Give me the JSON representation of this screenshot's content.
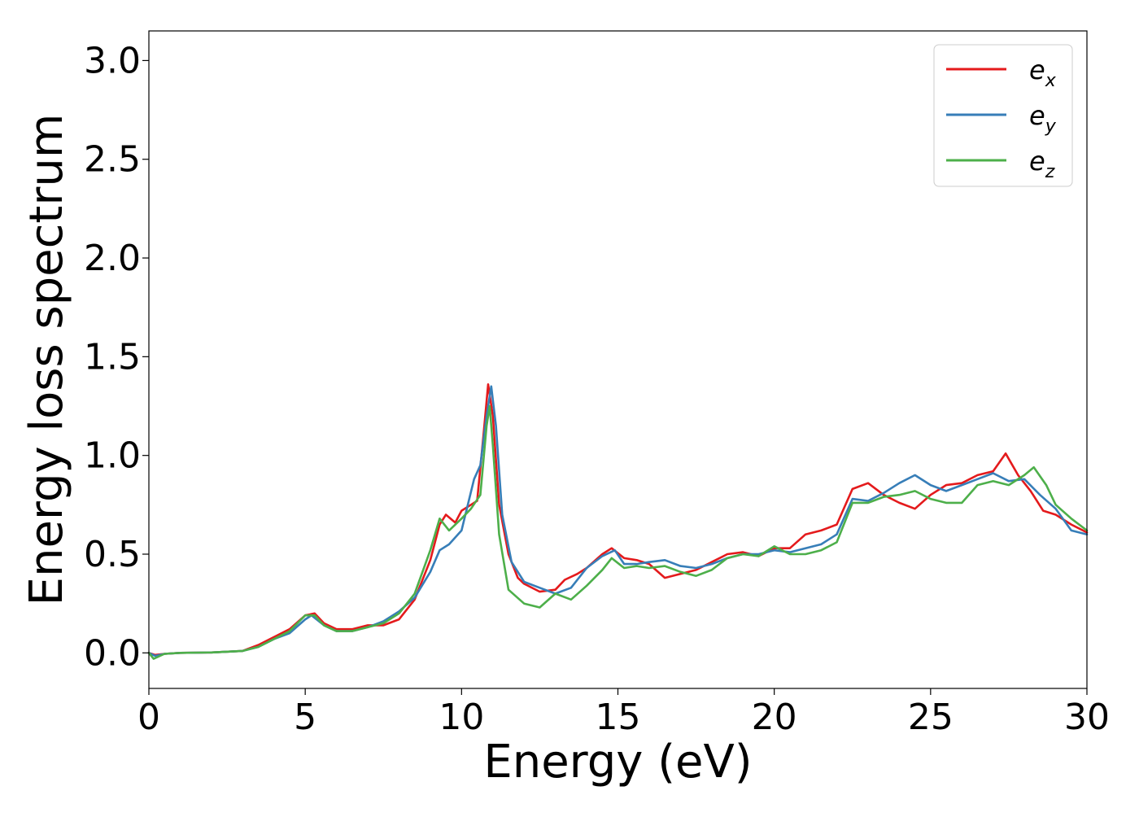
{
  "chart_data": {
    "type": "line",
    "title": "",
    "xlabel": "Energy (eV)",
    "ylabel": "Energy loss spectrum",
    "xlim": [
      0,
      30
    ],
    "ylim": [
      -0.18,
      3.15
    ],
    "xticks": [
      0,
      5,
      10,
      15,
      20,
      25,
      30
    ],
    "xtick_labels": [
      "0",
      "5",
      "10",
      "15",
      "20",
      "25",
      "30"
    ],
    "yticks": [
      0.0,
      0.5,
      1.0,
      1.5,
      2.0,
      2.5,
      3.0
    ],
    "ytick_labels": [
      "0.0",
      "0.5",
      "1.0",
      "1.5",
      "2.0",
      "2.5",
      "3.0"
    ],
    "grid": false,
    "legend_position": "top-right",
    "series": [
      {
        "name": "e_x",
        "legend_base": "e",
        "legend_sub": "x",
        "color": "#e41a1c",
        "points": [
          [
            0,
            0
          ],
          [
            0.2,
            -0.01
          ],
          [
            0.5,
            -0.005
          ],
          [
            1,
            0
          ],
          [
            2,
            0.002
          ],
          [
            3,
            0.01
          ],
          [
            3.5,
            0.04
          ],
          [
            4,
            0.08
          ],
          [
            4.5,
            0.12
          ],
          [
            5,
            0.19
          ],
          [
            5.3,
            0.2
          ],
          [
            5.6,
            0.15
          ],
          [
            6,
            0.12
          ],
          [
            6.5,
            0.12
          ],
          [
            7,
            0.14
          ],
          [
            7.5,
            0.14
          ],
          [
            8,
            0.17
          ],
          [
            8.5,
            0.27
          ],
          [
            9,
            0.47
          ],
          [
            9.3,
            0.65
          ],
          [
            9.5,
            0.7
          ],
          [
            9.8,
            0.66
          ],
          [
            10,
            0.72
          ],
          [
            10.3,
            0.75
          ],
          [
            10.5,
            0.77
          ],
          [
            10.7,
            1.1
          ],
          [
            10.85,
            1.36
          ],
          [
            11,
            1.2
          ],
          [
            11.2,
            0.75
          ],
          [
            11.5,
            0.5
          ],
          [
            11.8,
            0.38
          ],
          [
            12,
            0.35
          ],
          [
            12.5,
            0.31
          ],
          [
            13,
            0.32
          ],
          [
            13.3,
            0.37
          ],
          [
            13.7,
            0.4
          ],
          [
            14,
            0.43
          ],
          [
            14.5,
            0.5
          ],
          [
            14.8,
            0.53
          ],
          [
            15.2,
            0.48
          ],
          [
            15.6,
            0.47
          ],
          [
            16,
            0.45
          ],
          [
            16.5,
            0.38
          ],
          [
            17,
            0.4
          ],
          [
            17.5,
            0.42
          ],
          [
            18,
            0.46
          ],
          [
            18.5,
            0.5
          ],
          [
            19,
            0.51
          ],
          [
            19.5,
            0.49
          ],
          [
            20,
            0.53
          ],
          [
            20.5,
            0.53
          ],
          [
            21,
            0.6
          ],
          [
            21.5,
            0.62
          ],
          [
            22,
            0.65
          ],
          [
            22.5,
            0.83
          ],
          [
            23,
            0.86
          ],
          [
            23.5,
            0.8
          ],
          [
            24,
            0.76
          ],
          [
            24.5,
            0.73
          ],
          [
            25,
            0.8
          ],
          [
            25.5,
            0.85
          ],
          [
            26,
            0.86
          ],
          [
            26.5,
            0.9
          ],
          [
            27,
            0.92
          ],
          [
            27.4,
            1.01
          ],
          [
            27.8,
            0.9
          ],
          [
            28.2,
            0.82
          ],
          [
            28.6,
            0.72
          ],
          [
            29,
            0.7
          ],
          [
            29.5,
            0.65
          ],
          [
            30,
            0.61
          ]
        ]
      },
      {
        "name": "e_y",
        "legend_base": "e",
        "legend_sub": "y",
        "color": "#377eb8",
        "points": [
          [
            0,
            0
          ],
          [
            0.2,
            -0.015
          ],
          [
            0.5,
            -0.005
          ],
          [
            1,
            0
          ],
          [
            2,
            0.002
          ],
          [
            3,
            0.01
          ],
          [
            3.5,
            0.03
          ],
          [
            4,
            0.07
          ],
          [
            4.5,
            0.1
          ],
          [
            5,
            0.17
          ],
          [
            5.2,
            0.19
          ],
          [
            5.6,
            0.14
          ],
          [
            6,
            0.11
          ],
          [
            6.5,
            0.11
          ],
          [
            7,
            0.13
          ],
          [
            7.5,
            0.16
          ],
          [
            8,
            0.21
          ],
          [
            8.5,
            0.28
          ],
          [
            9,
            0.41
          ],
          [
            9.3,
            0.52
          ],
          [
            9.6,
            0.55
          ],
          [
            10,
            0.62
          ],
          [
            10.4,
            0.88
          ],
          [
            10.6,
            0.95
          ],
          [
            10.8,
            1.2
          ],
          [
            10.95,
            1.35
          ],
          [
            11.1,
            1.15
          ],
          [
            11.3,
            0.7
          ],
          [
            11.6,
            0.46
          ],
          [
            12,
            0.36
          ],
          [
            12.5,
            0.33
          ],
          [
            13,
            0.3
          ],
          [
            13.5,
            0.33
          ],
          [
            14,
            0.43
          ],
          [
            14.5,
            0.49
          ],
          [
            14.9,
            0.52
          ],
          [
            15.2,
            0.45
          ],
          [
            15.6,
            0.45
          ],
          [
            16,
            0.46
          ],
          [
            16.5,
            0.47
          ],
          [
            17,
            0.44
          ],
          [
            17.5,
            0.43
          ],
          [
            18,
            0.45
          ],
          [
            18.5,
            0.48
          ],
          [
            19,
            0.5
          ],
          [
            19.5,
            0.5
          ],
          [
            20,
            0.52
          ],
          [
            20.5,
            0.51
          ],
          [
            21,
            0.53
          ],
          [
            21.5,
            0.55
          ],
          [
            22,
            0.6
          ],
          [
            22.5,
            0.78
          ],
          [
            23,
            0.77
          ],
          [
            23.5,
            0.81
          ],
          [
            24,
            0.86
          ],
          [
            24.5,
            0.9
          ],
          [
            25,
            0.85
          ],
          [
            25.5,
            0.82
          ],
          [
            26,
            0.85
          ],
          [
            26.5,
            0.88
          ],
          [
            27,
            0.91
          ],
          [
            27.5,
            0.87
          ],
          [
            28,
            0.88
          ],
          [
            28.5,
            0.8
          ],
          [
            29,
            0.73
          ],
          [
            29.5,
            0.62
          ],
          [
            30,
            0.6
          ]
        ]
      },
      {
        "name": "e_z",
        "legend_base": "e",
        "legend_sub": "z",
        "color": "#4daf4a",
        "points": [
          [
            0,
            0
          ],
          [
            0.15,
            -0.03
          ],
          [
            0.5,
            -0.005
          ],
          [
            1,
            0
          ],
          [
            2,
            0.002
          ],
          [
            3,
            0.01
          ],
          [
            3.5,
            0.03
          ],
          [
            4,
            0.07
          ],
          [
            4.5,
            0.11
          ],
          [
            5,
            0.19
          ],
          [
            5.3,
            0.19
          ],
          [
            5.6,
            0.14
          ],
          [
            6,
            0.11
          ],
          [
            6.5,
            0.11
          ],
          [
            7,
            0.13
          ],
          [
            7.5,
            0.15
          ],
          [
            8,
            0.2
          ],
          [
            8.5,
            0.3
          ],
          [
            9,
            0.52
          ],
          [
            9.3,
            0.68
          ],
          [
            9.6,
            0.62
          ],
          [
            10,
            0.68
          ],
          [
            10.3,
            0.73
          ],
          [
            10.6,
            0.8
          ],
          [
            10.8,
            1.15
          ],
          [
            10.9,
            1.25
          ],
          [
            11,
            1.05
          ],
          [
            11.2,
            0.6
          ],
          [
            11.5,
            0.32
          ],
          [
            12,
            0.25
          ],
          [
            12.5,
            0.23
          ],
          [
            13,
            0.3
          ],
          [
            13.5,
            0.27
          ],
          [
            14,
            0.34
          ],
          [
            14.5,
            0.42
          ],
          [
            14.8,
            0.48
          ],
          [
            15.2,
            0.43
          ],
          [
            15.6,
            0.44
          ],
          [
            16,
            0.43
          ],
          [
            16.5,
            0.44
          ],
          [
            17,
            0.41
          ],
          [
            17.5,
            0.39
          ],
          [
            18,
            0.42
          ],
          [
            18.5,
            0.48
          ],
          [
            19,
            0.5
          ],
          [
            19.5,
            0.49
          ],
          [
            20,
            0.54
          ],
          [
            20.5,
            0.5
          ],
          [
            21,
            0.5
          ],
          [
            21.5,
            0.52
          ],
          [
            22,
            0.56
          ],
          [
            22.5,
            0.76
          ],
          [
            23,
            0.76
          ],
          [
            23.5,
            0.79
          ],
          [
            24,
            0.8
          ],
          [
            24.5,
            0.82
          ],
          [
            25,
            0.78
          ],
          [
            25.5,
            0.76
          ],
          [
            26,
            0.76
          ],
          [
            26.5,
            0.85
          ],
          [
            27,
            0.87
          ],
          [
            27.5,
            0.85
          ],
          [
            28,
            0.9
          ],
          [
            28.3,
            0.94
          ],
          [
            28.7,
            0.85
          ],
          [
            29,
            0.75
          ],
          [
            29.5,
            0.68
          ],
          [
            30,
            0.62
          ]
        ]
      }
    ]
  }
}
